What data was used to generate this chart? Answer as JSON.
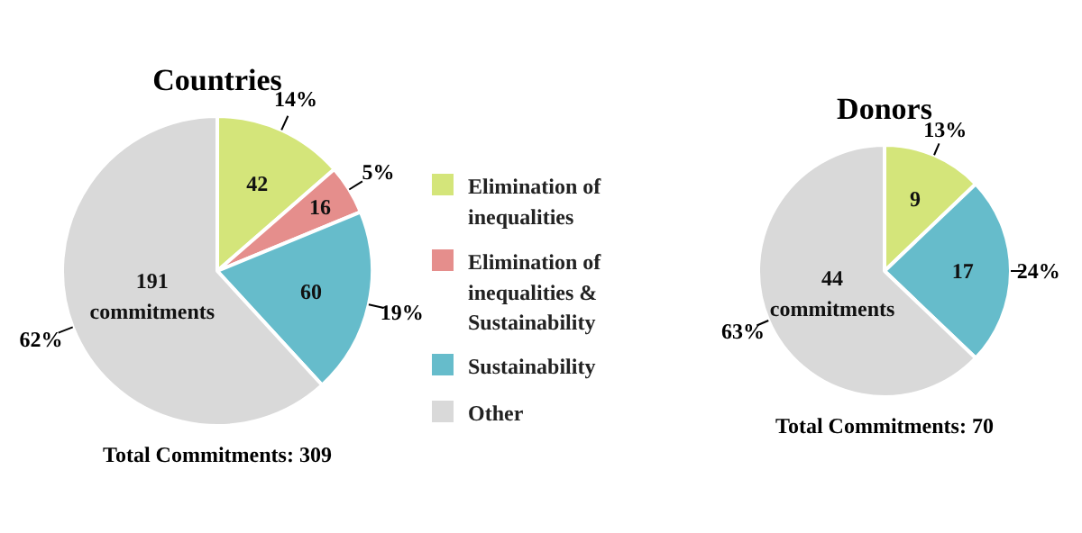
{
  "chart_data": [
    {
      "type": "pie",
      "title": "Countries",
      "xlabel": "Total Commitments: 309",
      "categories": [
        "Elimination of inequalities",
        "Elimination of inequalities & Sustainability",
        "Sustainability",
        "Other"
      ],
      "values": [
        42,
        16,
        60,
        191
      ],
      "value_labels": [
        "42",
        "16",
        "60",
        "191 commitments"
      ],
      "colors": [
        "#d4e57a",
        "#e58e8c",
        "#66bccb",
        "#d9d9d9"
      ],
      "annotations": [
        "14%",
        "5%",
        "19%",
        "62%"
      ],
      "legend": "right"
    },
    {
      "type": "pie",
      "title": "Donors",
      "xlabel": "Total Commitments: 70",
      "values": [
        9,
        17,
        44
      ],
      "value_labels": [
        "9",
        "17",
        "44 commitments"
      ],
      "colors": [
        "#d4e57a",
        "#66bccb",
        "#d9d9d9"
      ],
      "annotations": [
        "13%",
        "24%",
        "63%"
      ]
    }
  ]
}
